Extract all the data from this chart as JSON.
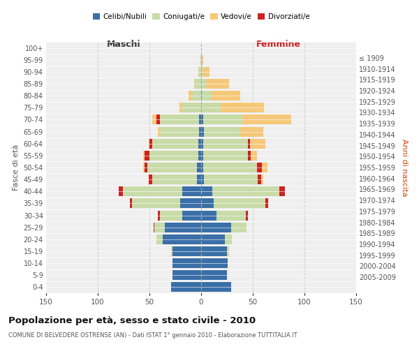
{
  "age_groups": [
    "0-4",
    "5-9",
    "10-14",
    "15-19",
    "20-24",
    "25-29",
    "30-34",
    "35-39",
    "40-44",
    "45-49",
    "50-54",
    "55-59",
    "60-64",
    "65-69",
    "70-74",
    "75-79",
    "80-84",
    "85-89",
    "90-94",
    "95-99",
    "100+"
  ],
  "birth_years": [
    "2005-2009",
    "2000-2004",
    "1995-1999",
    "1990-1994",
    "1985-1989",
    "1980-1984",
    "1975-1979",
    "1970-1974",
    "1965-1969",
    "1960-1964",
    "1955-1959",
    "1950-1954",
    "1945-1949",
    "1940-1944",
    "1935-1939",
    "1930-1934",
    "1925-1929",
    "1920-1924",
    "1915-1919",
    "1910-1914",
    "≤ 1909"
  ],
  "males": {
    "celibi": [
      29,
      28,
      28,
      28,
      37,
      35,
      18,
      20,
      18,
      4,
      4,
      3,
      3,
      2,
      2,
      0,
      0,
      0,
      0,
      0,
      0
    ],
    "coniugati": [
      0,
      0,
      0,
      1,
      6,
      10,
      22,
      47,
      58,
      43,
      48,
      47,
      44,
      38,
      38,
      18,
      9,
      6,
      2,
      1,
      0
    ],
    "vedovi": [
      0,
      0,
      0,
      0,
      0,
      0,
      0,
      0,
      0,
      0,
      1,
      1,
      1,
      2,
      4,
      3,
      3,
      1,
      1,
      0,
      0
    ],
    "divorziati": [
      0,
      0,
      0,
      0,
      0,
      1,
      2,
      2,
      4,
      4,
      3,
      5,
      3,
      0,
      3,
      0,
      0,
      0,
      0,
      0,
      0
    ]
  },
  "females": {
    "nubili": [
      29,
      25,
      26,
      25,
      23,
      29,
      15,
      12,
      11,
      3,
      2,
      2,
      2,
      3,
      2,
      0,
      1,
      0,
      0,
      0,
      0
    ],
    "coniugate": [
      0,
      0,
      0,
      2,
      7,
      15,
      28,
      50,
      65,
      52,
      52,
      43,
      43,
      35,
      38,
      19,
      9,
      5,
      2,
      0,
      0
    ],
    "vedove": [
      0,
      0,
      0,
      0,
      0,
      0,
      0,
      0,
      0,
      2,
      5,
      6,
      15,
      22,
      47,
      42,
      28,
      22,
      6,
      2,
      0
    ],
    "divorziate": [
      0,
      0,
      0,
      0,
      0,
      0,
      2,
      3,
      5,
      3,
      5,
      3,
      2,
      0,
      0,
      0,
      0,
      0,
      0,
      0,
      0
    ]
  },
  "colors": {
    "celibi": "#3a6fa8",
    "coniugati": "#c8dba8",
    "vedovi": "#f5c87a",
    "divorziati": "#cc2222"
  },
  "title": "Popolazione per età, sesso e stato civile - 2010",
  "subtitle": "COMUNE DI BELVEDERE OSTRENSE (AN) - Dati ISTAT 1° gennaio 2010 - Elaborazione TUTTITALIA.IT",
  "xlabel_left": "Maschi",
  "xlabel_right": "Femmine",
  "ylabel_left": "Fasce di età",
  "ylabel_right": "Anni di nascita",
  "xlim": 150,
  "background_color": "#ffffff",
  "plot_bg": "#efefef",
  "grid_color": "#cccccc",
  "legend_labels": [
    "Celibi/Nubili",
    "Coniugati/e",
    "Vedovi/e",
    "Divorziati/e"
  ]
}
